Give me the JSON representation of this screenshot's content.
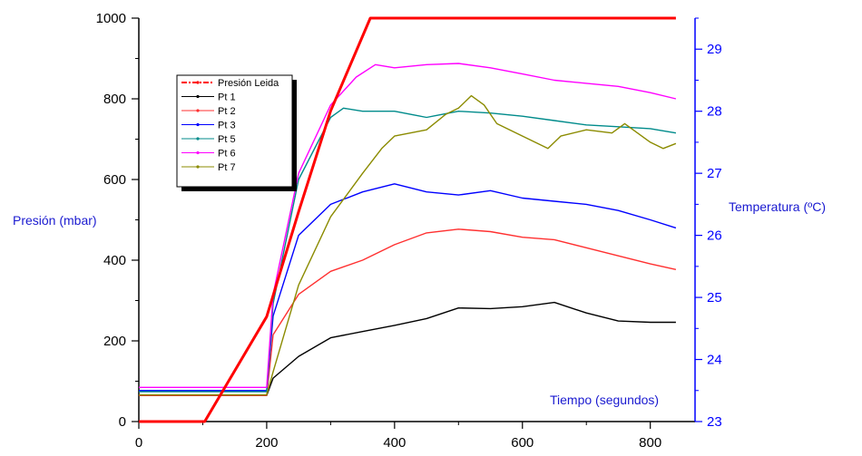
{
  "chart_data": {
    "type": "line",
    "xlabel": "Tiempo (segundos)",
    "ylabel": "Presión (mbar)",
    "y2label": "Temperatura (ºC)",
    "xlim": [
      0,
      870
    ],
    "ylim": [
      0,
      1000
    ],
    "y2lim": [
      23,
      29.5
    ],
    "xticks": [
      0,
      200,
      400,
      600,
      800
    ],
    "yticks": [
      0,
      200,
      400,
      600,
      800,
      1000
    ],
    "y2ticks": [
      23,
      24,
      25,
      26,
      27,
      28,
      29
    ],
    "grid": false,
    "legend_position": "upper-left",
    "pressure_series": {
      "name": "Presión Leida",
      "color": "#ff0000",
      "axis": "left",
      "x": [
        0,
        103,
        200,
        250,
        300,
        362,
        840
      ],
      "y": [
        0,
        0,
        260,
        520,
        770,
        1000,
        1000
      ]
    },
    "temperature_series": [
      {
        "name": "Pt 1",
        "color": "#000000",
        "axis": "right",
        "x": [
          0,
          200,
          210,
          250,
          300,
          350,
          400,
          450,
          500,
          550,
          600,
          650,
          700,
          750,
          800,
          840
        ],
        "y": [
          23.42,
          23.42,
          23.7,
          24.05,
          24.35,
          24.45,
          24.55,
          24.66,
          24.83,
          24.82,
          24.85,
          24.92,
          24.75,
          24.62,
          24.6,
          24.6
        ]
      },
      {
        "name": "Pt 2",
        "color": "#ff3030",
        "axis": "right",
        "x": [
          0,
          200,
          210,
          250,
          300,
          350,
          400,
          450,
          500,
          550,
          600,
          650,
          700,
          750,
          800,
          840
        ],
        "y": [
          23.42,
          23.42,
          24.4,
          25.05,
          25.42,
          25.6,
          25.85,
          26.04,
          26.1,
          26.06,
          25.97,
          25.93,
          25.8,
          25.67,
          25.54,
          25.45
        ]
      },
      {
        "name": "Pt 3",
        "color": "#0000ff",
        "axis": "right",
        "x": [
          0,
          200,
          210,
          250,
          300,
          350,
          400,
          450,
          500,
          550,
          600,
          650,
          700,
          750,
          800,
          840
        ],
        "y": [
          23.5,
          23.5,
          24.7,
          26.0,
          26.5,
          26.7,
          26.83,
          26.7,
          26.65,
          26.72,
          26.6,
          26.55,
          26.5,
          26.4,
          26.25,
          26.12
        ]
      },
      {
        "name": "Pt 5",
        "color": "#008b8b",
        "axis": "right",
        "x": [
          0,
          200,
          210,
          250,
          300,
          320,
          350,
          400,
          450,
          500,
          550,
          600,
          650,
          700,
          750,
          800,
          840
        ],
        "y": [
          23.48,
          23.48,
          24.9,
          26.9,
          27.9,
          28.05,
          28.0,
          28.0,
          27.9,
          28.0,
          27.97,
          27.92,
          27.85,
          27.78,
          27.75,
          27.72,
          27.65
        ]
      },
      {
        "name": "Pt 6",
        "color": "#ff00ff",
        "axis": "right",
        "x": [
          0,
          200,
          210,
          250,
          300,
          340,
          370,
          400,
          450,
          500,
          550,
          600,
          650,
          700,
          750,
          800,
          840
        ],
        "y": [
          23.55,
          23.55,
          25.05,
          27.0,
          28.1,
          28.55,
          28.75,
          28.7,
          28.75,
          28.77,
          28.7,
          28.6,
          28.5,
          28.45,
          28.4,
          28.3,
          28.2
        ]
      },
      {
        "name": "Pt 7",
        "color": "#8b8b00",
        "axis": "right",
        "x": [
          0,
          200,
          210,
          250,
          300,
          350,
          380,
          400,
          450,
          480,
          500,
          520,
          540,
          560,
          600,
          640,
          660,
          700,
          740,
          760,
          800,
          820,
          840
        ],
        "y": [
          23.43,
          23.43,
          23.8,
          25.2,
          26.3,
          27.0,
          27.4,
          27.6,
          27.7,
          27.95,
          28.05,
          28.25,
          28.1,
          27.8,
          27.6,
          27.4,
          27.6,
          27.7,
          27.65,
          27.8,
          27.5,
          27.4,
          27.48
        ]
      }
    ]
  }
}
